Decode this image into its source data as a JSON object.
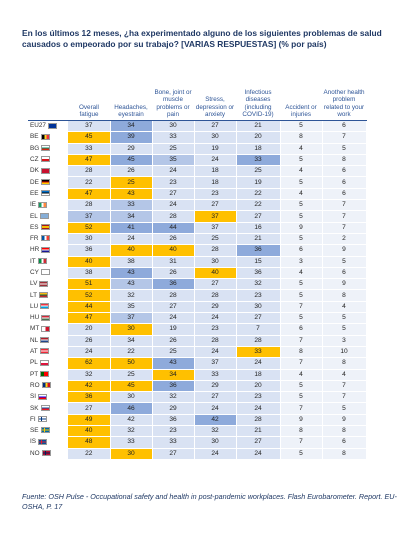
{
  "title": "En los últimos 12 meses, ¿ha experimentado alguno de los siguientes problemas de salud causados o empeorado por su trabajo? [VARIAS RESPUESTAS] (% por país)",
  "source": "Fuente: OSH Pulse - Occupational safety and health in post-pandemic workplaces. Flash Eurobarometer. Report. EU-OSHA, P. 17",
  "colors": {
    "orange": "#ffc000",
    "dark_blue": "#8eaadb",
    "mid_blue": "#b4c6e7",
    "light_blue": "#d9e2f3",
    "pale_blue": "#eef2f9"
  },
  "chart_data": {
    "type": "table",
    "columns": [
      "Overall fatigue",
      "Headaches, eyestrain",
      "Bone, joint or muscle problems or pain",
      "Stress, depression or anxiety",
      "Infectious diseases (including COVID-19)",
      "Accident or injuries",
      "Another health problem related to your work"
    ],
    "rows": [
      {
        "country": "EU27",
        "flag": "eu-flag-icon",
        "values": [
          37,
          34,
          30,
          27,
          21,
          5,
          6
        ],
        "levels": [
          "l",
          "d",
          "l",
          "l",
          "l",
          "p",
          "p"
        ]
      },
      {
        "country": "BE",
        "flag": "be-flag-icon",
        "values": [
          45,
          39,
          33,
          30,
          20,
          8,
          7
        ],
        "levels": [
          "o",
          "d",
          "l",
          "l",
          "l",
          "p",
          "p"
        ]
      },
      {
        "country": "BG",
        "flag": "bg-flag-icon",
        "values": [
          33,
          29,
          25,
          19,
          18,
          4,
          5
        ],
        "levels": [
          "l",
          "l",
          "l",
          "l",
          "l",
          "p",
          "p"
        ]
      },
      {
        "country": "CZ",
        "flag": "cz-flag-icon",
        "values": [
          47,
          45,
          35,
          24,
          33,
          5,
          8
        ],
        "levels": [
          "o",
          "d",
          "m",
          "l",
          "d",
          "p",
          "p"
        ]
      },
      {
        "country": "DK",
        "flag": "dk-flag-icon",
        "values": [
          28,
          26,
          24,
          18,
          25,
          4,
          6
        ],
        "levels": [
          "l",
          "l",
          "l",
          "l",
          "l",
          "p",
          "p"
        ]
      },
      {
        "country": "DE",
        "flag": "de-flag-icon",
        "values": [
          22,
          25,
          23,
          18,
          19,
          5,
          6
        ],
        "levels": [
          "l",
          "o",
          "l",
          "l",
          "l",
          "p",
          "p"
        ]
      },
      {
        "country": "EE",
        "flag": "ee-flag-icon",
        "values": [
          47,
          43,
          27,
          23,
          22,
          4,
          6
        ],
        "levels": [
          "o",
          "o",
          "l",
          "l",
          "l",
          "p",
          "p"
        ]
      },
      {
        "country": "IE",
        "flag": "ie-flag-icon",
        "values": [
          28,
          33,
          24,
          27,
          22,
          5,
          7
        ],
        "levels": [
          "l",
          "m",
          "l",
          "l",
          "l",
          "p",
          "p"
        ]
      },
      {
        "country": "EL",
        "flag": "el-flag-icon",
        "values": [
          37,
          34,
          28,
          37,
          27,
          5,
          7
        ],
        "levels": [
          "m",
          "m",
          "l",
          "o",
          "l",
          "p",
          "p"
        ]
      },
      {
        "country": "ES",
        "flag": "es-flag-icon",
        "values": [
          52,
          41,
          44,
          37,
          16,
          9,
          7
        ],
        "levels": [
          "o",
          "d",
          "d",
          "l",
          "l",
          "p",
          "p"
        ]
      },
      {
        "country": "FR",
        "flag": "fr-flag-icon",
        "values": [
          30,
          24,
          26,
          25,
          21,
          5,
          2
        ],
        "levels": [
          "l",
          "l",
          "l",
          "l",
          "l",
          "p",
          "p"
        ]
      },
      {
        "country": "HR",
        "flag": "hr-flag-icon",
        "values": [
          36,
          40,
          40,
          28,
          36,
          6,
          9
        ],
        "levels": [
          "l",
          "o",
          "o",
          "l",
          "d",
          "p",
          "p"
        ]
      },
      {
        "country": "IT",
        "flag": "it-flag-icon",
        "values": [
          40,
          38,
          31,
          30,
          15,
          3,
          5
        ],
        "levels": [
          "o",
          "l",
          "l",
          "l",
          "l",
          "p",
          "p"
        ]
      },
      {
        "country": "CY",
        "flag": "cy-flag-icon",
        "values": [
          38,
          43,
          26,
          40,
          36,
          4,
          6
        ],
        "levels": [
          "l",
          "d",
          "l",
          "o",
          "l",
          "p",
          "p"
        ]
      },
      {
        "country": "LV",
        "flag": "lv-flag-icon",
        "values": [
          51,
          43,
          36,
          27,
          32,
          5,
          9
        ],
        "levels": [
          "o",
          "m",
          "d",
          "l",
          "l",
          "p",
          "p"
        ]
      },
      {
        "country": "LT",
        "flag": "lt-flag-icon",
        "values": [
          52,
          32,
          28,
          28,
          23,
          5,
          8
        ],
        "levels": [
          "o",
          "l",
          "l",
          "l",
          "l",
          "p",
          "p"
        ]
      },
      {
        "country": "LU",
        "flag": "lu-flag-icon",
        "values": [
          44,
          35,
          27,
          29,
          30,
          7,
          4
        ],
        "levels": [
          "o",
          "l",
          "l",
          "l",
          "l",
          "p",
          "p"
        ]
      },
      {
        "country": "HU",
        "flag": "hu-flag-icon",
        "values": [
          47,
          37,
          24,
          24,
          27,
          5,
          5
        ],
        "levels": [
          "o",
          "m",
          "l",
          "l",
          "l",
          "p",
          "p"
        ]
      },
      {
        "country": "MT",
        "flag": "mt-flag-icon",
        "values": [
          20,
          30,
          19,
          23,
          7,
          6,
          5
        ],
        "levels": [
          "l",
          "o",
          "l",
          "l",
          "l",
          "p",
          "p"
        ]
      },
      {
        "country": "NL",
        "flag": "nl-flag-icon",
        "values": [
          26,
          34,
          26,
          28,
          28,
          7,
          3
        ],
        "levels": [
          "l",
          "l",
          "l",
          "l",
          "l",
          "p",
          "p"
        ]
      },
      {
        "country": "AT",
        "flag": "at-flag-icon",
        "values": [
          24,
          22,
          25,
          24,
          33,
          8,
          10
        ],
        "levels": [
          "l",
          "l",
          "l",
          "l",
          "o",
          "p",
          "p"
        ]
      },
      {
        "country": "PL",
        "flag": "pl-flag-icon",
        "values": [
          62,
          50,
          43,
          37,
          24,
          7,
          8
        ],
        "levels": [
          "o",
          "o",
          "d",
          "l",
          "l",
          "p",
          "p"
        ]
      },
      {
        "country": "PT",
        "flag": "pt-flag-icon",
        "values": [
          32,
          25,
          34,
          33,
          18,
          4,
          4
        ],
        "levels": [
          "l",
          "l",
          "o",
          "l",
          "l",
          "p",
          "p"
        ]
      },
      {
        "country": "RO",
        "flag": "ro-flag-icon",
        "values": [
          42,
          45,
          36,
          29,
          20,
          5,
          7
        ],
        "levels": [
          "o",
          "o",
          "d",
          "l",
          "l",
          "p",
          "p"
        ]
      },
      {
        "country": "SI",
        "flag": "si-flag-icon",
        "values": [
          36,
          30,
          32,
          27,
          23,
          5,
          7
        ],
        "levels": [
          "o",
          "l",
          "l",
          "l",
          "l",
          "p",
          "p"
        ]
      },
      {
        "country": "SK",
        "flag": "sk-flag-icon",
        "values": [
          27,
          46,
          29,
          24,
          24,
          7,
          5
        ],
        "levels": [
          "l",
          "d",
          "l",
          "l",
          "l",
          "p",
          "p"
        ]
      },
      {
        "country": "FI",
        "flag": "fi-flag-icon",
        "values": [
          49,
          42,
          36,
          42,
          28,
          9,
          9
        ],
        "levels": [
          "o",
          "l",
          "l",
          "d",
          "l",
          "p",
          "p"
        ]
      },
      {
        "country": "SE",
        "flag": "se-flag-icon",
        "values": [
          40,
          32,
          23,
          32,
          21,
          8,
          8
        ],
        "levels": [
          "o",
          "l",
          "l",
          "l",
          "l",
          "p",
          "p"
        ]
      },
      {
        "country": "IS",
        "flag": "is-flag-icon",
        "values": [
          48,
          33,
          33,
          30,
          27,
          7,
          6
        ],
        "levels": [
          "o",
          "l",
          "l",
          "l",
          "l",
          "p",
          "p"
        ]
      },
      {
        "country": "NO",
        "flag": "no-flag-icon",
        "values": [
          22,
          30,
          27,
          24,
          24,
          5,
          8
        ],
        "levels": [
          "l",
          "o",
          "l",
          "l",
          "l",
          "p",
          "p"
        ]
      }
    ]
  }
}
